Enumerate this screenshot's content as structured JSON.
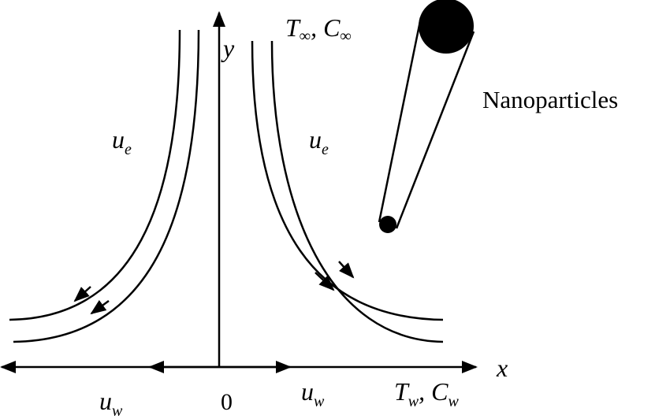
{
  "axes": {
    "x": "x",
    "y": "y",
    "origin": "0"
  },
  "flow_labels": [
    {
      "base": "u",
      "sub": "e"
    },
    {
      "base": "u",
      "sub": "e"
    }
  ],
  "wall_labels": [
    {
      "base": "u",
      "sub": "w"
    },
    {
      "base": "u",
      "sub": "w"
    }
  ],
  "ambient": {
    "t": "T",
    "t_sub": "∞",
    "sep": ", ",
    "c": "C",
    "c_sub": "∞"
  },
  "wall": {
    "t": "T",
    "t_sub": "w",
    "sep": ", ",
    "c": "C",
    "c_sub": "w"
  },
  "particles_label": "Nanoparticles"
}
